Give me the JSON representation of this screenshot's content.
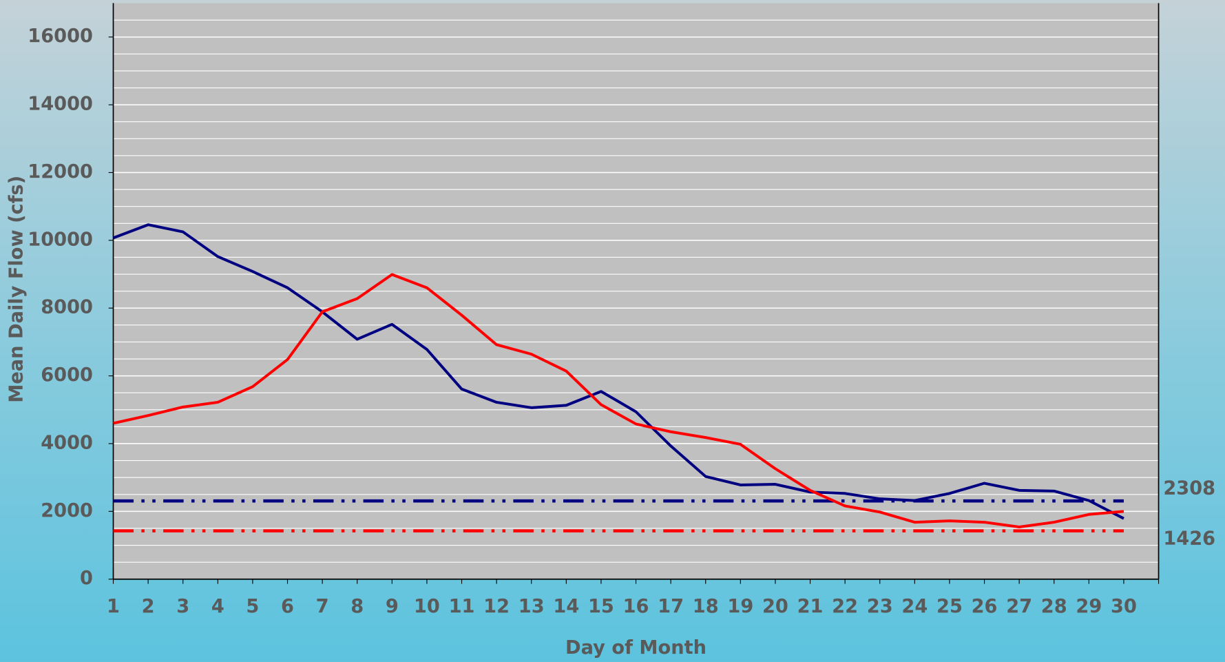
{
  "chart_data": {
    "type": "line",
    "x_label": "Day of Month",
    "y_label": "Mean Daily Flow (cfs)",
    "x": [
      1,
      2,
      3,
      4,
      5,
      6,
      7,
      8,
      9,
      10,
      11,
      12,
      13,
      14,
      15,
      16,
      17,
      18,
      19,
      20,
      21,
      22,
      23,
      24,
      25,
      26,
      27,
      28,
      29,
      30
    ],
    "series": [
      {
        "color": "#000080",
        "values": [
          10070,
          10460,
          10250,
          9520,
          9080,
          8600,
          7890,
          7080,
          7520,
          6780,
          5610,
          5220,
          5060,
          5130,
          5540,
          4940,
          3930,
          3030,
          2780,
          2800,
          2570,
          2530,
          2370,
          2320,
          2530,
          2830,
          2620,
          2600,
          2320,
          1790
        ]
      },
      {
        "color": "#ff0000",
        "values": [
          4600,
          4830,
          5080,
          5220,
          5680,
          6480,
          7890,
          8280,
          8990,
          8600,
          7790,
          6920,
          6640,
          6140,
          5150,
          4580,
          4350,
          4180,
          3980,
          3260,
          2620,
          2160,
          1980,
          1680,
          1720,
          1680,
          1540,
          1680,
          1910,
          2000
        ]
      }
    ],
    "reference_lines": [
      {
        "value": 2308,
        "color": "#000080"
      },
      {
        "value": 1426,
        "color": "#ff0000"
      }
    ],
    "xlim": [
      1,
      31
    ],
    "xticks": [
      1,
      2,
      3,
      4,
      5,
      6,
      7,
      8,
      9,
      10,
      11,
      12,
      13,
      14,
      15,
      16,
      17,
      18,
      19,
      20,
      21,
      22,
      23,
      24,
      25,
      26,
      27,
      28,
      29,
      30
    ],
    "ylim": [
      0,
      17000
    ],
    "yticks": [
      0,
      2000,
      4000,
      6000,
      8000,
      10000,
      12000,
      14000,
      16000
    ],
    "grid": true,
    "minor_grid_interval": 500,
    "plot_background": "#c0c0c0"
  }
}
